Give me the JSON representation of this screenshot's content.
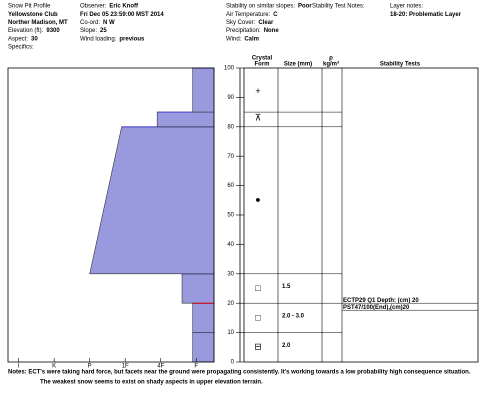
{
  "header": {
    "col1": [
      {
        "value": "Snow Pit Profile"
      },
      {
        "value": "Yellowstone Club",
        "bold": true
      },
      {
        "value": "Norther Madison, MT",
        "bold": true
      },
      {
        "label": "Elevation (ft):",
        "value": "9300"
      },
      {
        "label": "Aspect:",
        "value": "30"
      },
      {
        "label": "Specifics:"
      }
    ],
    "col2": [
      {
        "label": "Observer:",
        "value": "Eric Knoff"
      },
      {
        "value": "Fri Dec 05 23:59:00 MST 2014",
        "bold": true
      },
      {
        "label": "Co-ord:",
        "value": "N W"
      },
      {
        "label": "Slope:",
        "value": "25"
      },
      {
        "label": "Wind loading:",
        "value": "previous"
      }
    ],
    "col3": [
      {
        "label": "Stability on similar slopes:",
        "value": "Poor"
      },
      {
        "label": "Air Temperature:",
        "value": "C"
      },
      {
        "label": "Sky Cover:",
        "value": "Clear"
      },
      {
        "label": "Precipitation:",
        "value": "None"
      },
      {
        "label": "Wind:",
        "value": "Calm"
      }
    ],
    "col4": [
      {
        "label": "Stability Test Notes:"
      }
    ],
    "col5": [
      {
        "label": "Layer notes:"
      },
      {
        "value": "18-20: Problematic Layer",
        "bold": true
      }
    ]
  },
  "chart_data": {
    "type": "snowpit",
    "ylim": [
      0,
      100
    ],
    "yticks": [
      0,
      10,
      20,
      30,
      40,
      50,
      60,
      70,
      80,
      90,
      100
    ],
    "xlim": [
      6.3,
      0.5
    ],
    "xticks": [
      {
        "value": 6,
        "label": "I"
      },
      {
        "value": 5,
        "label": "K"
      },
      {
        "value": 4,
        "label": "P"
      },
      {
        "value": 3,
        "label": "1F"
      },
      {
        "value": 2,
        "label": "4F"
      },
      {
        "value": 1,
        "label": "F"
      }
    ],
    "color": "#9999dd",
    "layers": [
      {
        "bottom": 0,
        "top": 10,
        "hardness_bottom": 1.1,
        "hardness_top": 1.1
      },
      {
        "bottom": 10,
        "top": 20,
        "hardness_bottom": 1.1,
        "hardness_top": 1.1
      },
      {
        "bottom": 20,
        "top": 30,
        "hardness_bottom": 1.4,
        "hardness_top": 1.4
      },
      {
        "bottom": 30,
        "top": 80,
        "hardness_bottom": 4,
        "hardness_top": 3.1
      },
      {
        "bottom": 80,
        "top": 85,
        "hardness_bottom": 2.1,
        "hardness_top": 2.1
      },
      {
        "bottom": 85,
        "top": 100,
        "hardness_bottom": 1.1,
        "hardness_top": 1.1
      }
    ],
    "problem_height": 20,
    "columns": {
      "crystal": "Crystal",
      "form": "Form",
      "size": "Size (mm)",
      "rho": "ρ",
      "density": "kg/m³",
      "tests": "Stability Tests"
    },
    "crystals": [
      {
        "height": 92,
        "form": "+"
      },
      {
        "height": 83,
        "form": "⊼"
      },
      {
        "height": 55,
        "form": "●"
      },
      {
        "height": 25,
        "form": "□",
        "size": "1.5"
      },
      {
        "height": 15,
        "form": "□",
        "size": "2.0 - 3.0"
      },
      {
        "height": 5,
        "form": "⊟",
        "size": "2.0"
      }
    ],
    "stability_tests": [
      {
        "height": 20,
        "label": "ECTP29 Q1 Depth: (cm) 20"
      },
      {
        "height": 20,
        "label": "PST47/100(End),(cm)20"
      }
    ],
    "notes": [
      "Notes: ECT's were taking hard force, but facets near the ground were propagating consistently. It's working towards a low probability high consequence situation.",
      "The weakest snow seems to exist on shady aspects in upper elevation terrain."
    ]
  }
}
